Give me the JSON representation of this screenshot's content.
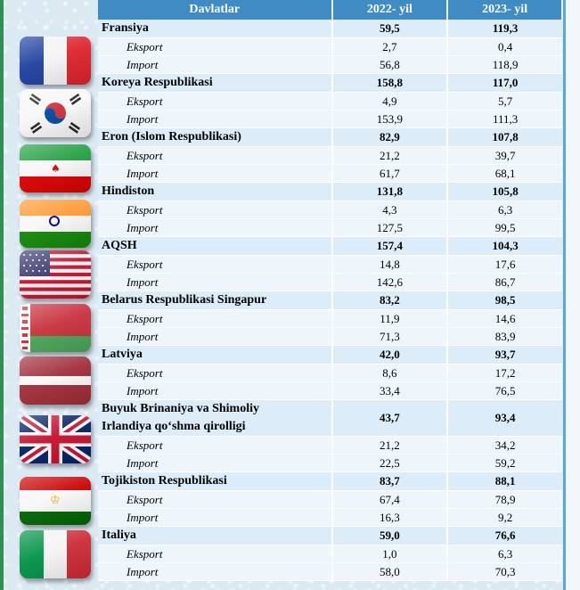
{
  "header": {
    "country_col": "Davlatlar",
    "year1": "2022- yil",
    "year2": "2023- yil"
  },
  "countries": [
    {
      "name": "Fransiya",
      "total_2022": "59,5",
      "total_2023": "119,3",
      "rows": [
        {
          "label": "Eksport",
          "v2022": "2,7",
          "v2023": "0,4"
        },
        {
          "label": "Import",
          "v2022": "56,8",
          "v2023": "118,9"
        }
      ]
    },
    {
      "name": "Koreya Respublikasi",
      "total_2022": "158,8",
      "total_2023": "117,0",
      "rows": [
        {
          "label": "Eksport",
          "v2022": "4,9",
          "v2023": "5,7"
        },
        {
          "label": "Import",
          "v2022": "153,9",
          "v2023": "111,3"
        }
      ]
    },
    {
      "name": "Eron (Islom Respublikasi)",
      "total_2022": "82,9",
      "total_2023": "107,8",
      "rows": [
        {
          "label": "Eksport",
          "v2022": "21,2",
          "v2023": "39,7"
        },
        {
          "label": "Import",
          "v2022": "61,7",
          "v2023": "68,1"
        }
      ]
    },
    {
      "name": "Hindiston",
      "total_2022": "131,8",
      "total_2023": "105,8",
      "rows": [
        {
          "label": "Eksport",
          "v2022": "4,3",
          "v2023": "6,3"
        },
        {
          "label": "Import",
          "v2022": "127,5",
          "v2023": "99,5"
        }
      ]
    },
    {
      "name": "AQSH",
      "total_2022": "157,4",
      "total_2023": "104,3",
      "rows": [
        {
          "label": "Eksport",
          "v2022": "14,8",
          "v2023": "17,6"
        },
        {
          "label": "Import",
          "v2022": "142,6",
          "v2023": "86,7"
        }
      ]
    },
    {
      "name": "Belarus Respublikasi Singapur",
      "total_2022": "83,2",
      "total_2023": "98,5",
      "rows": [
        {
          "label": "Eksport",
          "v2022": "11,9",
          "v2023": "14,6"
        },
        {
          "label": "Import",
          "v2022": "71,3",
          "v2023": "83,9"
        }
      ]
    },
    {
      "name": "Latviya",
      "total_2022": "42,0",
      "total_2023": "93,7",
      "rows": [
        {
          "label": "Eksport",
          "v2022": "8,6",
          "v2023": "17,2"
        },
        {
          "label": "Import",
          "v2022": "33,4",
          "v2023": "76,5"
        }
      ]
    },
    {
      "name_line1": "Buyuk Brinaniya va Shimoliy",
      "name_line2": "Irlandiya qo‘shma qirolligi",
      "total_2022": "43,7",
      "total_2023": "93,4",
      "rows": [
        {
          "label": "Eksport",
          "v2022": "21,2",
          "v2023": "34,2"
        },
        {
          "label": "Import",
          "v2022": "22,5",
          "v2023": "59,2"
        }
      ]
    },
    {
      "name": "Tojikiston Respublikasi",
      "total_2022": "83,7",
      "total_2023": "88,1",
      "rows": [
        {
          "label": "Eksport",
          "v2022": "67,4",
          "v2023": "78,9"
        },
        {
          "label": "Import",
          "v2022": "16,3",
          "v2023": "9,2"
        }
      ]
    },
    {
      "name": "Italiya",
      "total_2022": "59,0",
      "total_2023": "76,6",
      "rows": [
        {
          "label": "Eksport",
          "v2022": "1,0",
          "v2023": "6,3"
        },
        {
          "label": "Import",
          "v2022": "58,0",
          "v2023": "70,3"
        }
      ]
    }
  ],
  "flags": [
    {
      "name": "france-flag"
    },
    {
      "name": "south-korea-flag"
    },
    {
      "name": "iran-flag"
    },
    {
      "name": "india-flag"
    },
    {
      "name": "usa-flag"
    },
    {
      "name": "belarus-flag"
    },
    {
      "name": "latvia-flag"
    },
    {
      "name": "uk-flag"
    },
    {
      "name": "tajikistan-flag"
    },
    {
      "name": "italy-flag"
    }
  ],
  "colors": {
    "header_bg": "#3f8bc4",
    "country_row_bg": "#dcecf8",
    "sub_row_bg": "#eef6fc"
  }
}
